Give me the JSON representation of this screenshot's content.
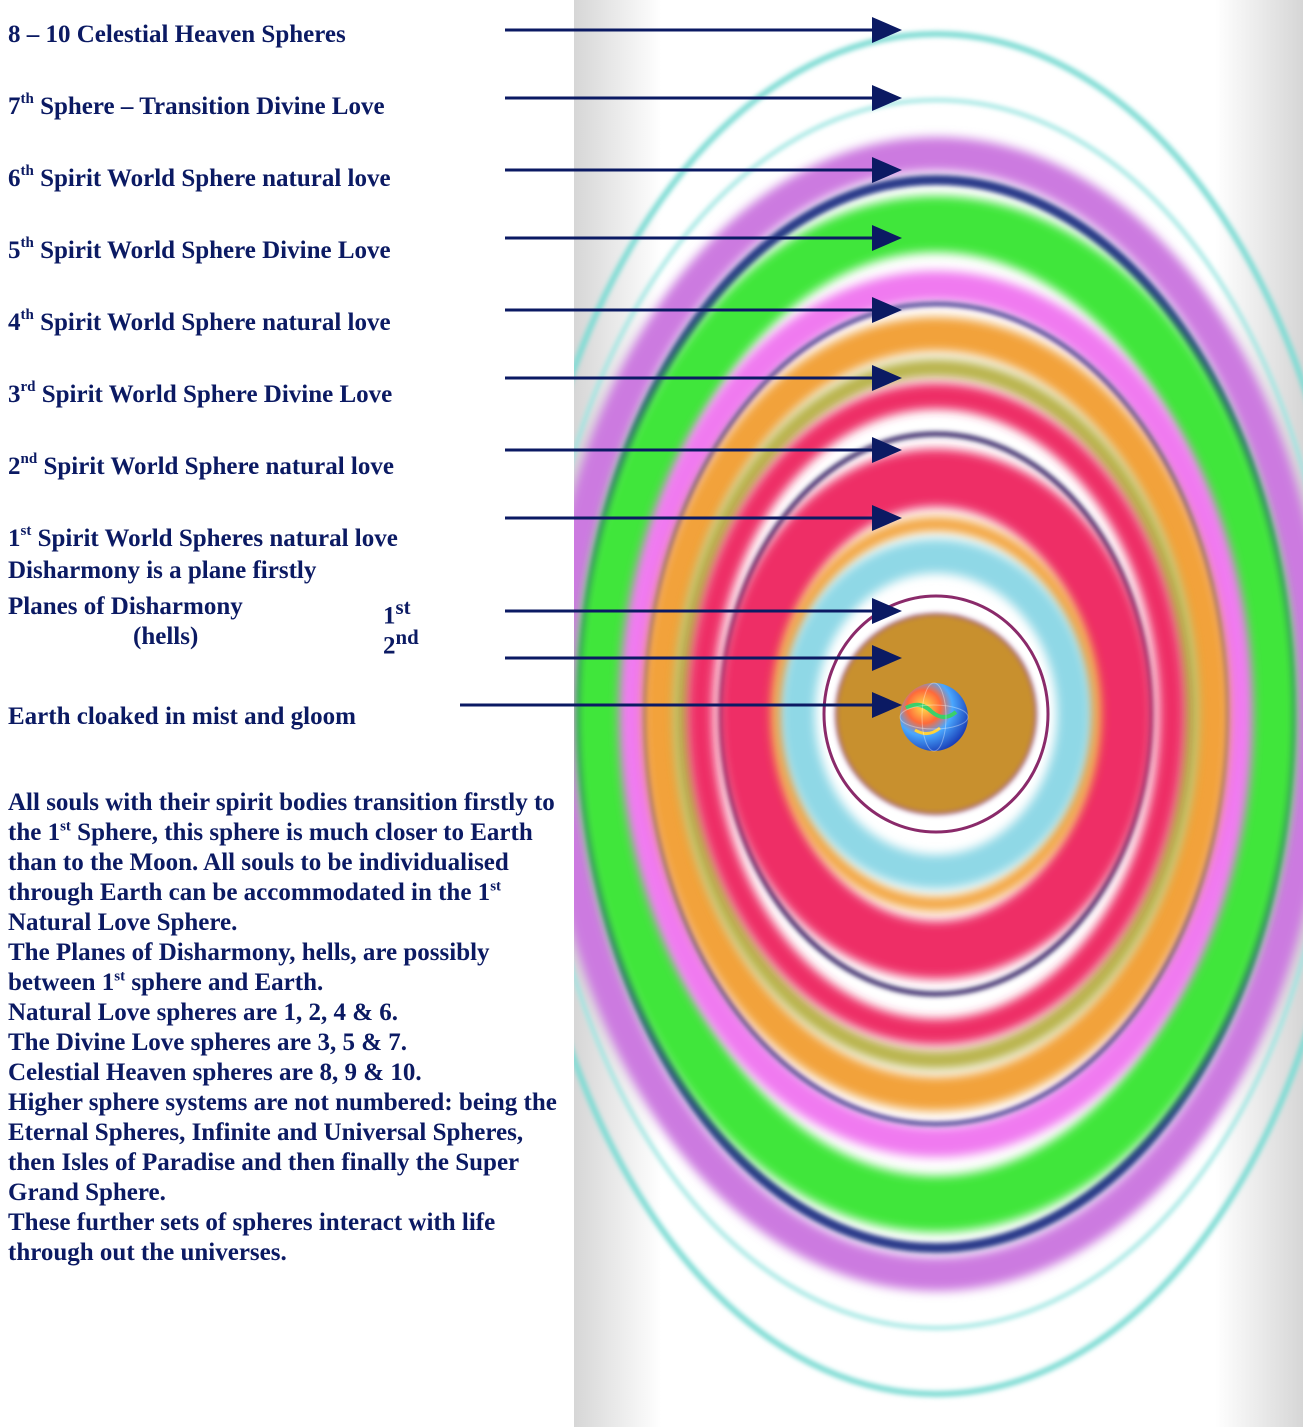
{
  "labels": {
    "celestial": {
      "pre": "8 – 10 Celestial Heaven Spheres"
    },
    "s7": {
      "num": "7",
      "sup": "th",
      "text": " Sphere – Transition Divine Love"
    },
    "s6": {
      "num": "6",
      "sup": "th",
      "text": " Spirit World Sphere natural love"
    },
    "s5": {
      "num": "5",
      "sup": "th",
      "text": " Spirit World Sphere Divine Love"
    },
    "s4": {
      "num": "4",
      "sup": "th",
      "text": " Spirit World Sphere natural love"
    },
    "s3": {
      "num": "3",
      "sup": "rd",
      "text": " Spirit World Sphere Divine Love"
    },
    "s2": {
      "num": "2",
      "sup": "nd",
      "text": " Spirit World Sphere natural love"
    },
    "s1": {
      "num": "1",
      "sup": "st",
      "text": " Spirit World Spheres natural love"
    },
    "disharmony_note": "Disharmony is a plane firstly",
    "planes_title": "Planes of Disharmony",
    "planes_sub": "(hells)",
    "plane1": {
      "num": "1",
      "sup": "st"
    },
    "plane2": {
      "num": "2",
      "sup": "nd"
    },
    "earth": "Earth cloaked in mist and gloom"
  },
  "paragraph": {
    "line1_a": "All souls with their spirit bodies transition firstly to the 1",
    "line1_sup": "st",
    "line1_b": " Sphere, this sphere is much closer to Earth than to the Moon.  All souls to be individualised through Earth can be accommodated in the 1",
    "line1_sup2": "st",
    "line1_c": " Natural Love Sphere.",
    "line2_a": "The Planes of Disharmony, hells, are possibly between 1",
    "line2_sup": "st",
    "line2_b": " sphere and Earth.",
    "line3": "Natural Love spheres are 1, 2, 4 & 6.",
    "line4": "The Divine Love spheres are 3, 5 & 7.",
    "line5": "Celestial Heaven spheres are 8, 9 & 10.",
    "line6": "Higher sphere systems are not numbered: being the Eternal Spheres, Infinite and Universal Spheres, then Isles of Paradise and then finally the Super Grand Sphere.",
    "line7": "These further sets of spheres interact with life through out the universes."
  },
  "colors": {
    "text": "#0b1a63",
    "arrow": "#0b1a63",
    "teal": "#7fdcd4",
    "violet": "#cc7ae0",
    "navy": "#2b3a8a",
    "green": "#3fe63a",
    "pink": "#f07af0",
    "orange": "#f2a23a",
    "olive": "#b8b24a",
    "crimson": "#ee2e66",
    "skyblue": "#8fd8e6",
    "bronze": "#c8902e"
  }
}
